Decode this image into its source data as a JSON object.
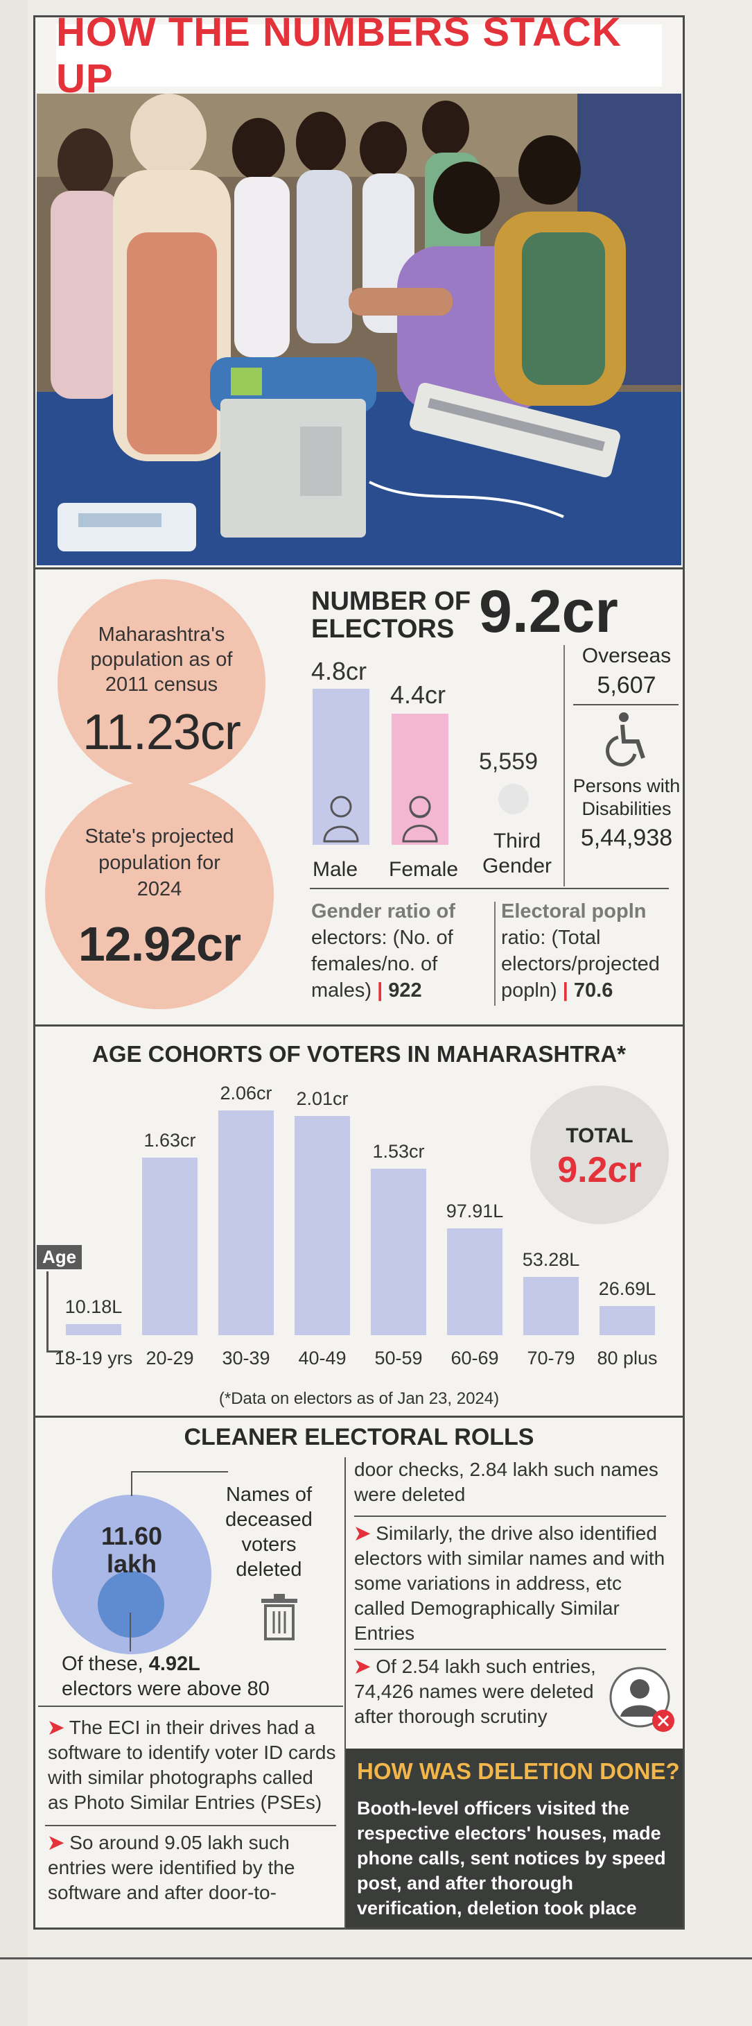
{
  "header": {
    "title": "HOW THE NUMBERS STACK UP"
  },
  "population": {
    "census_label": "Maharashtra's population as of 2011 census",
    "census_line1": "Maharashtra's",
    "census_line2": "population as of",
    "census_line3": "2011 census",
    "census_value": "11.23cr",
    "projected_line1": "State's projected",
    "projected_line2": "population for",
    "projected_line3": "2024",
    "projected_value": "12.92cr"
  },
  "electors": {
    "heading_line1": "NUMBER OF",
    "heading_line2": "ELECTORS",
    "total": "9.2cr",
    "male_value": "4.8cr",
    "male_label": "Male",
    "female_value": "4.4cr",
    "female_label": "Female",
    "third_value": "5,559",
    "third_label_line1": "Third",
    "third_label_line2": "Gender",
    "overseas_label": "Overseas",
    "overseas_value": "5,607",
    "pwd_label_line1": "Persons with",
    "pwd_label_line2": "Disabilities",
    "pwd_value": "5,44,938",
    "gender_ratio_line1": "Gender ratio of",
    "gender_ratio_line2": "electors: (No. of",
    "gender_ratio_line3": "females/no. of",
    "gender_ratio_line4": "males)",
    "gender_ratio_value": "922",
    "electoral_line1": "Electoral popln",
    "electoral_line2": "ratio: (Total",
    "electoral_line3": "electors/projected",
    "electoral_line4": "popln)",
    "electoral_value": "70.6",
    "colors": {
      "male": "#c4c9ea",
      "female": "#f3b7d4"
    }
  },
  "chart_data": {
    "type": "bar",
    "title": "AGE COHORTS OF VOTERS IN MAHARASHTRA*",
    "xlabel": "Age",
    "categories": [
      "18-19 yrs",
      "20-29",
      "30-39",
      "40-49",
      "50-59",
      "60-69",
      "70-79",
      "80 plus"
    ],
    "values_lakh": [
      10.18,
      163,
      206,
      201,
      153,
      97.91,
      53.28,
      26.69
    ],
    "value_labels": [
      "10.18L",
      "1.63cr",
      "2.06cr",
      "2.01cr",
      "1.53cr",
      "97.91L",
      "53.28L",
      "26.69L"
    ],
    "ylim": [
      0,
      210
    ],
    "total_label": "TOTAL",
    "total_value": "9.2cr",
    "footnote": "(*Data on electors as of Jan 23, 2024)",
    "bar_color": "#c4c9ea"
  },
  "rolls": {
    "heading": "CLEANER ELECTORAL ROLLS",
    "deceased_value_line1": "11.60",
    "deceased_value_line2": "lakh",
    "deceased_label_line1": "Names of",
    "deceased_label_line2": "deceased",
    "deceased_label_line3": "voters",
    "deceased_label_line4": "deleted",
    "above80_prefix": "Of these,",
    "above80_value": "4.92L",
    "above80_suffix": "electors were above 80",
    "left_p1": "The ECI in their drives had a software to identify voter ID cards with similar photographs called as Photo Similar Entries (PSEs)",
    "left_p2": "So around 9.05 lakh such entries were identified by the software and after door-to-",
    "right_p0": "door checks, 2.84 lakh such names were deleted",
    "right_p1": "Similarly, the drive also identified electors with similar names and with some variations in address, etc called Demographically Similar Entries",
    "right_p2": "Of 2.54 lakh such entries, 74,426 names were deleted after thorough scrutiny"
  },
  "deletion": {
    "heading": "HOW WAS DELETION DONE?",
    "body": "Booth-level officers visited the respective electors' houses, made phone calls, sent notices by speed post, and after thorough verification, deletion took place"
  },
  "icons": [
    "male-person-icon",
    "female-person-icon",
    "third-gender-icon",
    "wheelchair-icon",
    "trash-bin-icon",
    "deleted-user-icon"
  ]
}
